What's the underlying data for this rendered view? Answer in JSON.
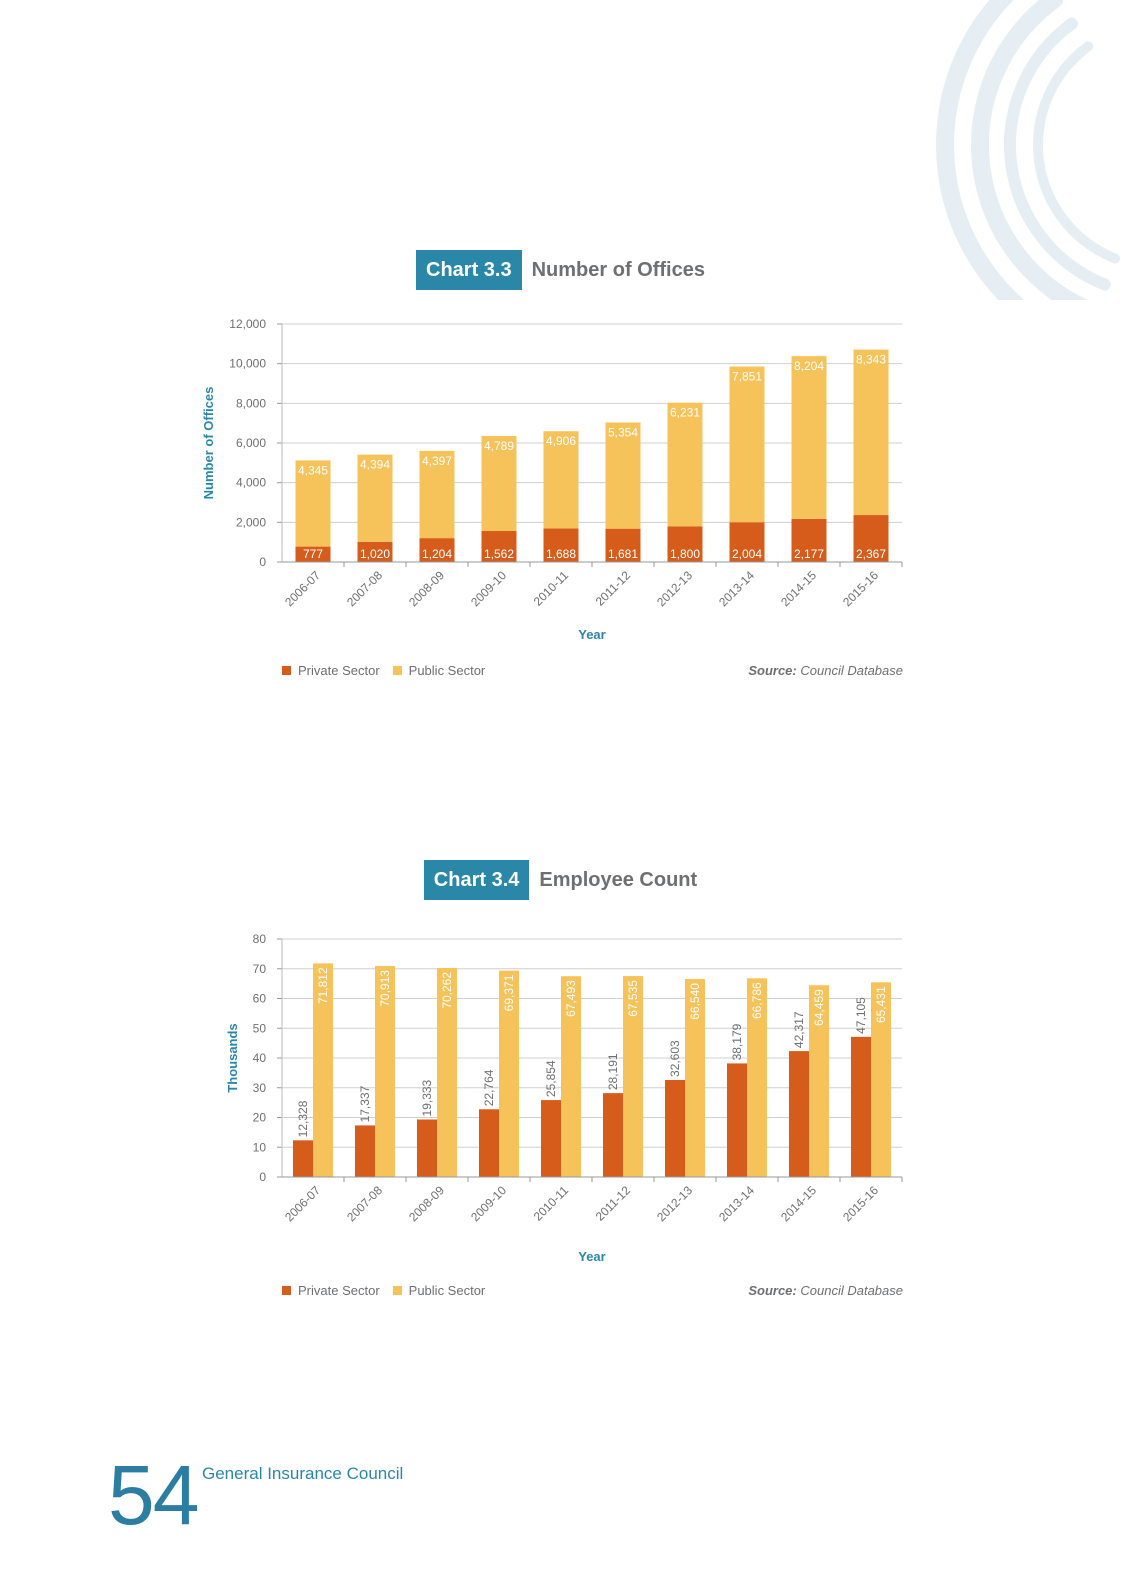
{
  "colors": {
    "private": "#d65c1b",
    "public": "#f6c35b",
    "accent": "#2b87a8",
    "axis_text": "#6e6f71",
    "grid": "#d0d0d0",
    "decor": "#e6eef3"
  },
  "legend": {
    "private_label": "Private Sector",
    "public_label": "Public Sector"
  },
  "source": {
    "label": "Source:",
    "text": "Council Database"
  },
  "footer": {
    "page_number": "54",
    "publisher": "General Insurance Council"
  },
  "decor_icon": "concentric-arcs-icon",
  "chart_data": [
    {
      "type": "bar",
      "stacked": true,
      "badge": "Chart 3.3",
      "title": "Number of Offices",
      "xlabel": "Year",
      "ylabel": "Number of Offices",
      "ylim": [
        0,
        12000
      ],
      "yticks": [
        0,
        2000,
        4000,
        6000,
        8000,
        10000,
        12000
      ],
      "ytick_labels": [
        "0",
        "2,000",
        "4,000",
        "6,000",
        "8,000",
        "10,000",
        "12,000"
      ],
      "grid": true,
      "legend_position": "bottom-left",
      "categories": [
        "2006-07",
        "2007-08",
        "2008-09",
        "2009-10",
        "2010-11",
        "2011-12",
        "2012-13",
        "2013-14",
        "2014-15",
        "2015-16"
      ],
      "series": [
        {
          "name": "Private Sector",
          "values": [
            777,
            1020,
            1204,
            1562,
            1688,
            1681,
            1800,
            2004,
            2177,
            2367
          ],
          "labels": [
            "777",
            "1,020",
            "1,204",
            "1,562",
            "1,688",
            "1,681",
            "1,800",
            "2,004",
            "2,177",
            "2,367"
          ]
        },
        {
          "name": "Public Sector",
          "values": [
            4345,
            4394,
            4397,
            4789,
            4906,
            5354,
            6231,
            7851,
            8204,
            8343
          ],
          "labels": [
            "4,345",
            "4,394",
            "4,397",
            "4,789",
            "4,906",
            "5,354",
            "6,231",
            "7,851",
            "8,204",
            "8,343"
          ]
        }
      ]
    },
    {
      "type": "bar",
      "stacked": false,
      "badge": "Chart 3.4",
      "title": "Employee Count",
      "xlabel": "Year",
      "ylabel": "Thousands",
      "ylim": [
        0,
        80
      ],
      "yticks": [
        0,
        10,
        20,
        30,
        40,
        50,
        60,
        70,
        80
      ],
      "ytick_labels": [
        "0",
        "10",
        "20",
        "30",
        "40",
        "50",
        "60",
        "70",
        "80"
      ],
      "grid": true,
      "legend_position": "bottom-left",
      "categories": [
        "2006-07",
        "2007-08",
        "2008-09",
        "2009-10",
        "2010-11",
        "2011-12",
        "2012-13",
        "2013-14",
        "2014-15",
        "2015-16"
      ],
      "series": [
        {
          "name": "Private Sector",
          "values": [
            12.328,
            17.337,
            19.333,
            22.764,
            25.854,
            28.191,
            32.603,
            38.179,
            42.317,
            47.105
          ],
          "labels": [
            "12,328",
            "17,337",
            "19,333",
            "22,764",
            "25,854",
            "28,191",
            "32,603",
            "38,179",
            "42,317",
            "47,105"
          ]
        },
        {
          "name": "Public Sector",
          "values": [
            71.812,
            70.913,
            70.262,
            69.371,
            67.493,
            67.535,
            66.54,
            66.786,
            64.459,
            65.431
          ],
          "labels": [
            "71,812",
            "70,913",
            "70,262",
            "69,371",
            "67,493",
            "67,535",
            "66,540",
            "66,786",
            "64,459",
            "65,431"
          ]
        }
      ]
    }
  ]
}
